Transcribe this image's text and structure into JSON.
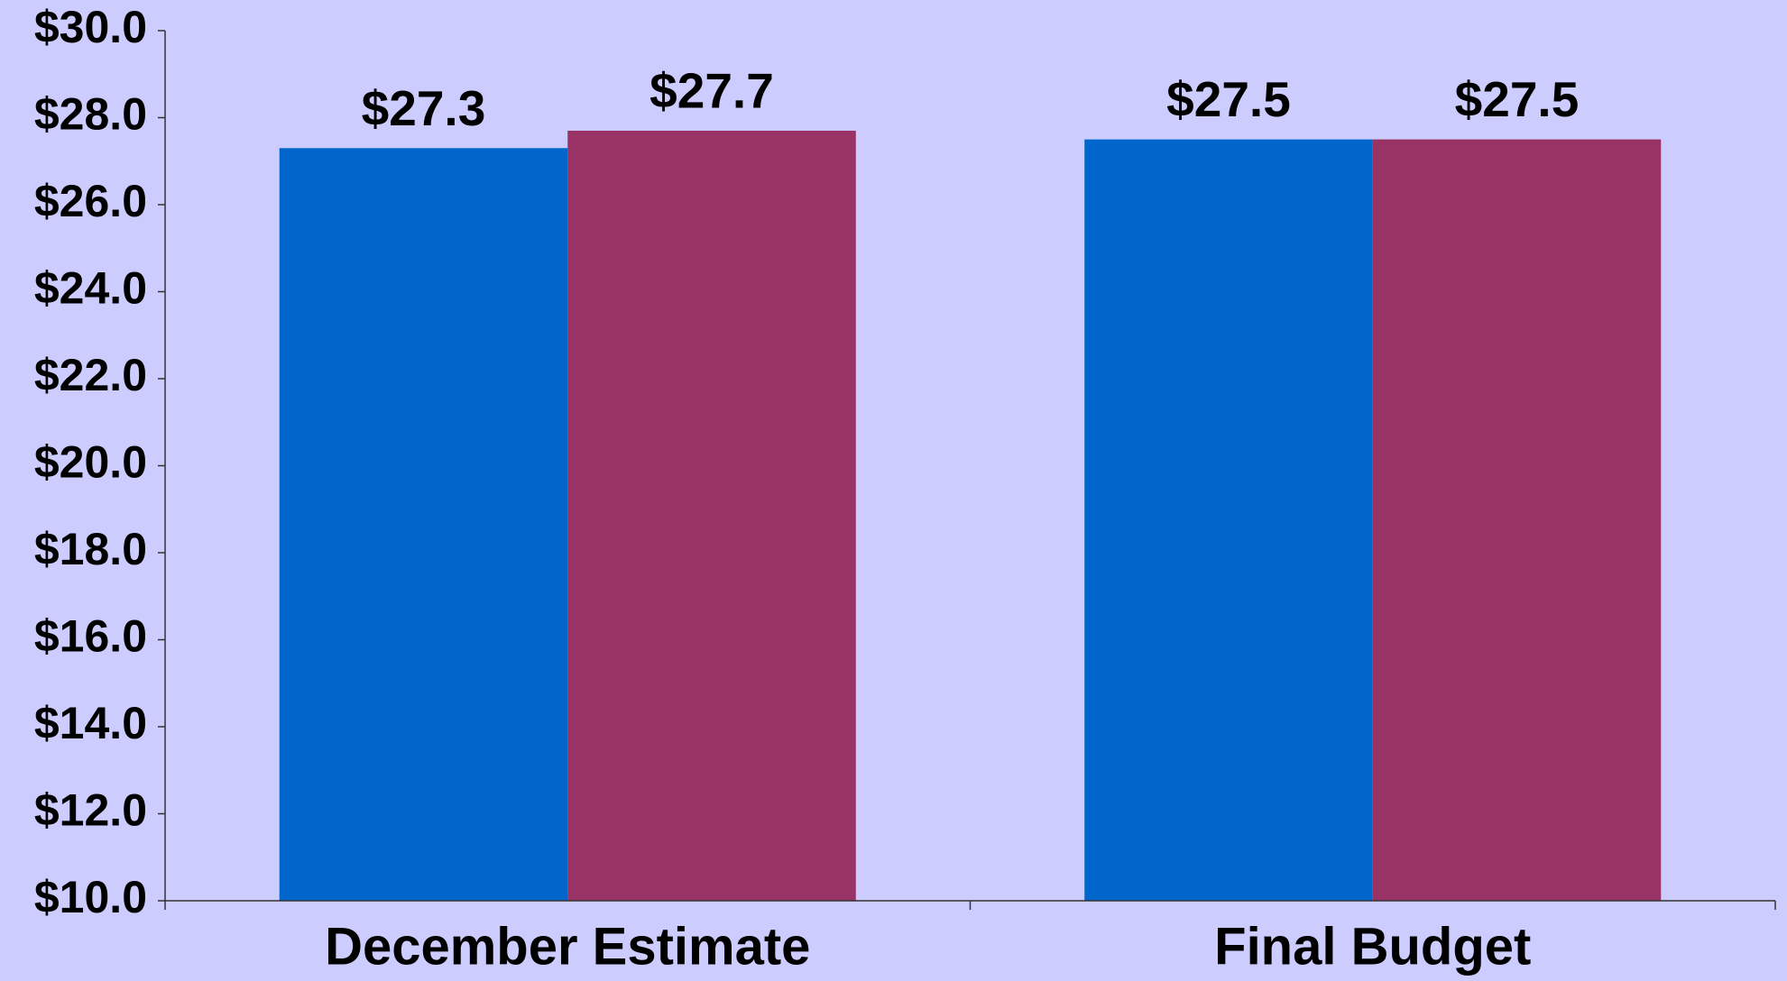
{
  "chart_data": {
    "type": "bar",
    "categories": [
      "December Estimate",
      "Final Budget"
    ],
    "series": [
      {
        "color": "#0066cc",
        "values": [
          27.3,
          27.5
        ],
        "value_labels": [
          "$27.3",
          "$27.5"
        ]
      },
      {
        "color": "#993366",
        "values": [
          27.7,
          27.5
        ],
        "value_labels": [
          "$27.7",
          "$27.5"
        ]
      }
    ],
    "ylim": [
      10,
      30
    ],
    "yticks": [
      {
        "value": 10,
        "label": "$10.0"
      },
      {
        "value": 12,
        "label": "$12.0"
      },
      {
        "value": 14,
        "label": "$14.0"
      },
      {
        "value": 16,
        "label": "$16.0"
      },
      {
        "value": 18,
        "label": "$18.0"
      },
      {
        "value": 20,
        "label": "$20.0"
      },
      {
        "value": 22,
        "label": "$22.0"
      },
      {
        "value": 24,
        "label": "$24.0"
      },
      {
        "value": 26,
        "label": "$26.0"
      },
      {
        "value": 28,
        "label": "$28.0"
      },
      {
        "value": 30,
        "label": "$30.0"
      }
    ],
    "grid": false,
    "background": "#ccccff"
  }
}
